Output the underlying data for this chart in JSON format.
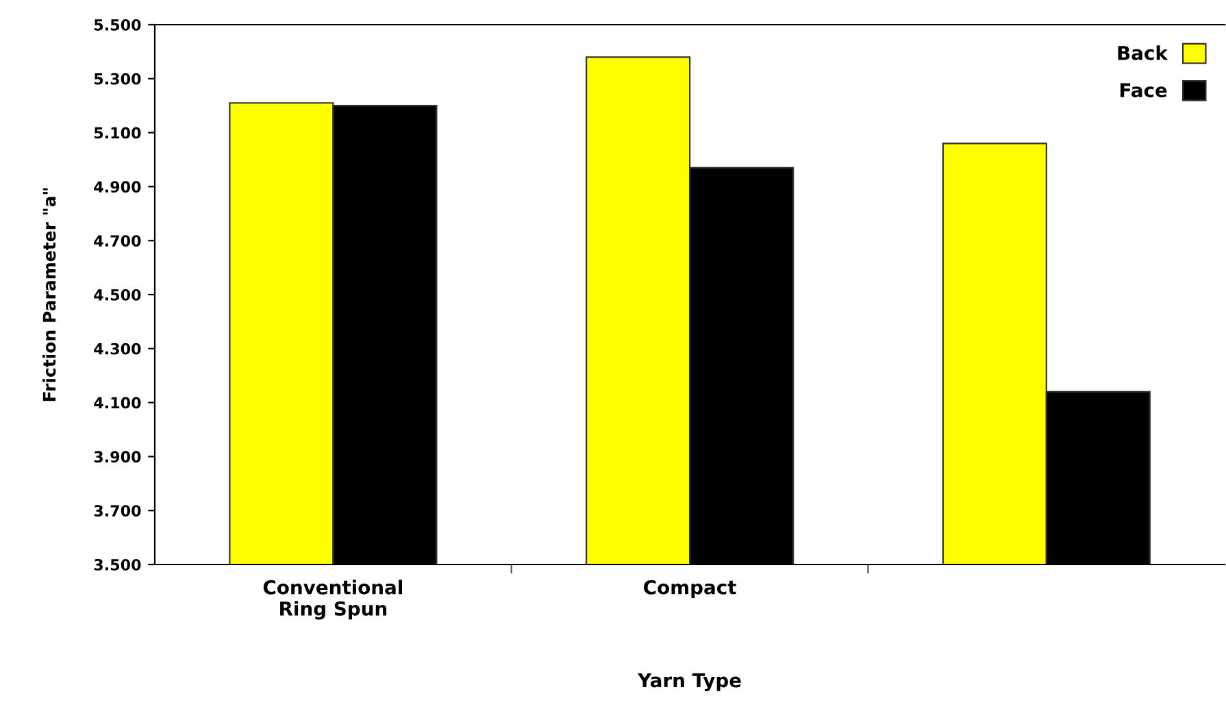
{
  "chart_data": {
    "type": "bar",
    "xlabel": "Yarn Type",
    "ylabel": "Friction Parameter \"a\"",
    "categories": [
      "Conventional\nRing Spun",
      "Compact",
      null
    ],
    "series": [
      {
        "name": "Back",
        "color": "#ffff00",
        "values": [
          5.21,
          5.38,
          5.06
        ]
      },
      {
        "name": "Face",
        "color": "#000000",
        "values": [
          5.2,
          4.97,
          4.14
        ]
      }
    ],
    "ylim": [
      3.5,
      5.5
    ],
    "yticks": [
      {
        "value": 3.5,
        "label": "3.500"
      },
      {
        "value": 3.7,
        "label": "3.700"
      },
      {
        "value": 3.9,
        "label": "3.900"
      },
      {
        "value": 4.1,
        "label": "4.100"
      },
      {
        "value": 4.3,
        "label": "4.300"
      },
      {
        "value": 4.5,
        "label": "4.500"
      },
      {
        "value": 4.7,
        "label": "4.700"
      },
      {
        "value": 4.9,
        "label": "4.900"
      },
      {
        "value": 5.1,
        "label": "5.100"
      },
      {
        "value": 5.3,
        "label": "5.300"
      },
      {
        "value": 5.5,
        "label": "5.500"
      }
    ],
    "grid": false,
    "legend": "top right"
  }
}
